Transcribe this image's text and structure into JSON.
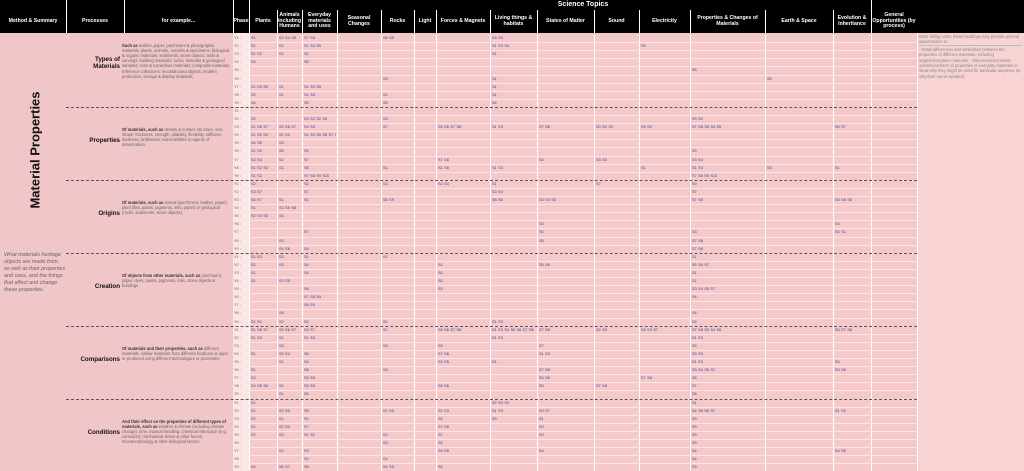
{
  "header": {
    "science_topics": "Science Topics",
    "columns": [
      "Method & Summary",
      "Processes",
      "for example...",
      "Phase",
      "Plants",
      "Animals including Humans",
      "Everyday materials and uses",
      "Seasonal Changes",
      "Rocks",
      "Light",
      "Forces & Magnets",
      "Living things & habitats",
      "States of Matter",
      "Sound",
      "Electricity",
      "Properties & Changes of Materials",
      "Earth & Space",
      "Evolution & Inheritance",
      "General Opportunities (by process)"
    ]
  },
  "method": {
    "title": "Material Properties",
    "summary": "What materials heritage objects are made from, as well as their properties and uses, and the things that affect and change these properties."
  },
  "phases": [
    "Y1 :",
    "Y2 :",
    "Y3 :",
    "Y4 :",
    "Y5 :",
    "Y6 :",
    "Y7 :",
    "Y8 :",
    "Y9 :"
  ],
  "processes": [
    {
      "name": "Types of Materials",
      "example_lead": "Such as",
      "example": "textiles, paper, parchment & photographic materials; plants, animals, remains & specimens; biological & organic materials; sediments, stone objects; tools & carvings; building materials; rocks, minerals & geological samples; tools & hazardous materials; composite materials; reference collections; reconstructed objects; modern production, storage & display materials."
    },
    {
      "name": "Properties",
      "example_lead": "Of materials, such as",
      "example": "density & surface structure, size, shape, thickness, strength, pliability, flexibility, stiffness, hardness, brittleness; vulnerabilities to agents of deterioration."
    },
    {
      "name": "Origins",
      "example_lead": "Of materials, such as",
      "example": "animal (parchment, leather, paper), plant (flax, paints, pigments, inks, paper) or geological (rocks, sediments, stone objects)."
    },
    {
      "name": "Creation",
      "example_lead": "Of objects from other materials, such as",
      "example": "parchment, paper, dyes, paints, pigments, inks, stone objects & buildings."
    },
    {
      "name": "Comparisons",
      "example_lead": "Of materials and their properties, such as",
      "example": "different materials, similar materials from different locations or ages, or produced using different technologies or processes."
    },
    {
      "name": "Conditions",
      "example_lead": "And their effect on the properties of different types of materials, such as",
      "example": "weather & climate (including climate change); time; manual handling; chemical interaction (e.g. corrosion); mechanical stress & other forces; micromorphology & other biological factors."
    }
  ],
  "opportunities": [
    "Work falling under these headings may provide general opportunities to:",
    "- Detail differences and similarities between the properties of different materials, including organic/inorganic materials. - Discuss/demonstrate usefulness/harm of properties of everyday materials to show why they might be used for particular purposes (or why their use is avoided)."
  ],
  "codes": {
    "r00": {
      "c0": [
        "S1"
      ],
      "c1": [
        "S3",
        "S4",
        "S5"
      ],
      "c2": [
        "S7",
        "S8"
      ],
      "c4": [
        "S8",
        "S9"
      ],
      "c7": [
        "S3",
        "S5"
      ]
    },
    "r01": {
      "c0": [
        "S1"
      ],
      "c1": [
        "S1"
      ],
      "c2": [
        "S1",
        "S4",
        "S5"
      ],
      "c7": [
        "S1",
        "S3",
        "S4"
      ],
      "c10": [
        "S9"
      ]
    },
    "r02": {
      "c0": [
        "S1",
        "S2"
      ],
      "c1": [
        "S1"
      ],
      "c2": [
        "S1"
      ],
      "c7": [
        "S1"
      ]
    },
    "r03": {
      "c0": [
        "S4"
      ],
      "c2": [
        "S5"
      ]
    },
    "r04": {
      "c11": [
        "S5"
      ]
    },
    "r05": {
      "c4": [
        "S9"
      ],
      "c7": [
        "S1"
      ],
      "c12": [
        "S5"
      ]
    },
    "r06": {
      "c0": [
        "S1",
        "S3",
        "S5"
      ],
      "c1": [
        "S1"
      ],
      "c2": [
        "S1",
        "S3",
        "S5"
      ],
      "c7": [
        "S1"
      ]
    },
    "r07": {
      "c0": [
        "S2"
      ],
      "c1": [
        "S1"
      ],
      "c2": [
        "S1",
        "S8"
      ],
      "c4": [
        "S2"
      ],
      "c7": [
        "S1"
      ]
    },
    "r08": {
      "c0": [
        "S4"
      ],
      "c2": [
        "S5"
      ],
      "c4": [
        "S5"
      ],
      "c7": [
        "S4"
      ]
    },
    "r10": {
      "c0": [
        "S2"
      ],
      "c2": [
        "S3",
        "S2",
        "S2",
        "S3"
      ],
      "c4": [
        "S3"
      ],
      "c11": [
        "S9",
        "S2"
      ]
    },
    "r11": {
      "c0": [
        "S1",
        "S6",
        "S7"
      ],
      "c1": [
        "S3",
        "S6",
        "S7"
      ],
      "c2": [
        "S4",
        "S5"
      ],
      "c4": [
        "S7"
      ],
      "c6": [
        "S5",
        "S6",
        "S7",
        "S8"
      ],
      "c7": [
        "S1",
        "S3"
      ],
      "c8": [
        "S7",
        "S8"
      ],
      "c9": [
        "S0",
        "S2",
        "S3"
      ],
      "c10": [
        "S9",
        "S3"
      ],
      "c11": [
        "S7",
        "S8",
        "S3",
        "S4",
        "S5"
      ],
      "c13": [
        "S6",
        "S7"
      ]
    },
    "r12": {
      "c0": [
        "S1",
        "S2",
        "S4"
      ],
      "c1": [
        "S1",
        "S3"
      ],
      "c2": [
        "S1",
        "S3",
        "S5",
        "S6",
        "S7",
        "S8",
        "S9"
      ]
    },
    "r13": {
      "c0": [
        "S4",
        "S5"
      ],
      "c1": [
        "S3"
      ]
    },
    "r14": {
      "c0": [
        "S1",
        "S2"
      ],
      "c1": [
        "S5"
      ],
      "c2": [
        "S1"
      ],
      "c11": [
        "S3"
      ]
    },
    "r15": {
      "c0": [
        "S2",
        "S4"
      ],
      "c1": [
        "S2"
      ],
      "c2": [
        "S7"
      ],
      "c6": [
        "S7",
        "S8"
      ],
      "c8": [
        "S4"
      ],
      "c9": [
        "S3",
        "S5"
      ],
      "c11": [
        "S3",
        "S4"
      ]
    },
    "r16": {
      "c0": [
        "S1",
        "S2",
        "S3"
      ],
      "c1": [
        "S1"
      ],
      "c2": [
        "S8"
      ],
      "c4": [
        "S1"
      ],
      "c6": [
        "S1",
        "S8"
      ],
      "c7": [
        "S1",
        "S3"
      ],
      "c10": [
        "S1"
      ],
      "c11": [
        "S1",
        "S4"
      ],
      "c12": [
        "S5"
      ],
      "c13": [
        "S1"
      ]
    },
    "r17": {
      "c0": [
        "S1",
        "S2"
      ],
      "c2": [
        "S7",
        "S8",
        "S9",
        "S10"
      ],
      "c11": [
        "S7",
        "S8",
        "S9",
        "S10"
      ]
    },
    "r18": {
      "c0": [
        "S2"
      ],
      "c2": [
        "S2"
      ],
      "c4": [
        "S2"
      ],
      "c6": [
        "S2",
        "S4"
      ],
      "c7": [
        "S1"
      ],
      "c9": [
        "S7"
      ],
      "c11": [
        "S9"
      ]
    },
    "r19": {
      "c0": [
        "S3",
        "S7"
      ],
      "c2": [
        "S7"
      ],
      "c7": [
        "S3",
        "S4"
      ],
      "c11": [
        "S7"
      ]
    },
    "r20": {
      "c0": [
        "S6",
        "S7"
      ],
      "c1": [
        "S1"
      ],
      "c2": [
        "S4"
      ],
      "c4": [
        "S8",
        "S9"
      ],
      "c7": [
        "S8",
        "S6"
      ],
      "c8": [
        "S3",
        "S4",
        "S5"
      ],
      "c11": [
        "S7",
        "S8"
      ],
      "c13": [
        "S5",
        "S6",
        "S8"
      ]
    },
    "r21": {
      "c0": [
        "S1"
      ],
      "c1": [
        "S3",
        "S5",
        "S8"
      ]
    },
    "r22": {
      "c0": [
        "S2",
        "S4",
        "S5"
      ],
      "c1": [
        "S4"
      ]
    },
    "r23": {
      "c8": [
        "S3"
      ],
      "c13": [
        "S4"
      ]
    },
    "r24": {
      "c2": [
        "S7"
      ],
      "c8": [
        "S6"
      ],
      "c11": [
        "S3"
      ],
      "c13": [
        "S3",
        "S1"
      ]
    },
    "r25": {
      "c1": [
        "S3"
      ],
      "c8": [
        "S5"
      ],
      "c11": [
        "S7",
        "S8"
      ]
    },
    "r26": {
      "c1": [
        "S4",
        "S6"
      ],
      "c2": [
        "S4"
      ],
      "c11": [
        "S7",
        "S8"
      ]
    },
    "r27": {
      "c0": [
        "S1",
        "S3"
      ],
      "c1": [
        "S3"
      ],
      "c2": [
        "S1"
      ],
      "c4": [
        "S1"
      ],
      "c11": [
        "S1"
      ]
    },
    "r28": {
      "c0": [
        "S2"
      ],
      "c1": [
        "S3"
      ],
      "c2": [
        "S4"
      ],
      "c6": [
        "S1"
      ],
      "c8": [
        "S5",
        "S6"
      ],
      "c11": [
        "S5",
        "S6",
        "S7"
      ]
    },
    "r29": {
      "c0": [
        "S1"
      ],
      "c2": [
        "S4"
      ],
      "c6": [
        "S2"
      ],
      "c11": [
        "S1"
      ]
    },
    "r30": {
      "c0": [
        "S1"
      ],
      "c1": [
        "S3",
        "S5"
      ],
      "c6": [
        "S2"
      ],
      "c11": [
        "S1"
      ]
    },
    "r31": {
      "c2": [
        "S8"
      ],
      "c6": [
        "S3"
      ],
      "c11": [
        "S3",
        "S4",
        "S5",
        "S7"
      ]
    },
    "r32": {
      "c2": [
        "S7",
        "S8",
        "S9"
      ],
      "c11": [
        "S4"
      ]
    },
    "r33": {
      "c2": [
        "S8",
        "S9"
      ]
    },
    "r34": {
      "c1": [
        "S4"
      ],
      "c11": [
        "S4"
      ]
    },
    "r35": {
      "c0": [
        "S1",
        "S2"
      ],
      "c1": [
        "S2"
      ],
      "c2": [
        "S2"
      ],
      "c4": [
        "S2"
      ],
      "c7": [
        "S1",
        "S3"
      ],
      "c11": [
        "S2"
      ]
    },
    "r36": {
      "c0": [
        "S1",
        "S6",
        "S7"
      ],
      "c1": [
        "S3",
        "S6",
        "S7"
      ],
      "c2": [
        "S4",
        "S7"
      ],
      "c4": [
        "S7"
      ],
      "c6": [
        "S5",
        "S6",
        "S7",
        "S8"
      ],
      "c7": [
        "S1",
        "S3",
        "S4",
        "S5",
        "S6",
        "S7",
        "S8"
      ],
      "c8": [
        "S7",
        "S8"
      ],
      "c9": [
        "S2",
        "S3"
      ],
      "c10": [
        "S9",
        "S3",
        "S7"
      ],
      "c11": [
        "S7",
        "S8",
        "S3",
        "S4",
        "S5"
      ],
      "c13": [
        "S6",
        "S7",
        "S8"
      ]
    },
    "r37": {
      "c0": [
        "S1",
        "S3"
      ],
      "c1": [
        "S1"
      ],
      "c2": [
        "S1",
        "S3"
      ],
      "c7": [
        "S1",
        "S3"
      ],
      "c11": [
        "S1",
        "S3"
      ]
    },
    "r38": {
      "c1": [
        "S3"
      ],
      "c4": [
        "S9"
      ],
      "c6": [
        "S9"
      ],
      "c8": [
        "S7"
      ],
      "c11": [
        "S9"
      ]
    },
    "r39": {
      "c0": [
        "S1"
      ],
      "c1": [
        "S3",
        "S4"
      ],
      "c2": [
        "S5"
      ],
      "c6": [
        "S7",
        "S8"
      ],
      "c8": [
        "S1",
        "S3"
      ],
      "c11": [
        "S3",
        "S5"
      ]
    },
    "r40": {
      "c1": [
        "S1"
      ],
      "c2": [
        "S4"
      ],
      "c6": [
        "S3",
        "S5"
      ],
      "c7": [
        "S1"
      ],
      "c11": [
        "S1",
        "S3"
      ],
      "c13": [
        "S4"
      ]
    },
    "r41": {
      "c0": [
        "S1"
      ],
      "c2": [
        "S8"
      ],
      "c4": [
        "S9"
      ],
      "c8": [
        "S7",
        "S8"
      ],
      "c11": [
        "S3",
        "S4",
        "S5",
        "S7"
      ],
      "c13": [
        "S3",
        "S5"
      ]
    },
    "r42": {
      "c0": [
        "S2"
      ],
      "c2": [
        "S5",
        "S8"
      ],
      "c8": [
        "S4",
        "S5"
      ],
      "c10": [
        "S7",
        "S8"
      ],
      "c11": [
        "S8"
      ]
    },
    "r43": {
      "c0": [
        "S4",
        "S5",
        "S6"
      ],
      "c1": [
        "S4"
      ],
      "c2": [
        "S5",
        "S8"
      ],
      "c6": [
        "S5",
        "S6"
      ],
      "c8": [
        "S5"
      ],
      "c9": [
        "S7",
        "S8"
      ],
      "c11": [
        "S7"
      ]
    },
    "r44": {
      "c1": [
        "S1"
      ],
      "c2": [
        "S6"
      ],
      "c11": [
        "S6"
      ]
    },
    "r45": {
      "c0": [
        "S1"
      ],
      "c7": [
        "S2",
        "S3",
        "S4"
      ],
      "c11": [
        "S1"
      ]
    },
    "r46": {
      "c0": [
        "S1"
      ],
      "c1": [
        "S3",
        "S5"
      ],
      "c2": [
        "S5"
      ],
      "c4": [
        "S1",
        "S5"
      ],
      "c6": [
        "S2",
        "S3"
      ],
      "c7": [
        "S1",
        "S3"
      ],
      "c8": [
        "S3",
        "S7"
      ],
      "c11": [
        "S4",
        "S5",
        "S6",
        "S7"
      ],
      "c13": [
        "S1",
        "S2"
      ]
    },
    "r47": {
      "c0": [
        "S2"
      ],
      "c1": [
        "S1"
      ],
      "c2": [
        "S1"
      ],
      "c6": [
        "S3"
      ],
      "c7": [
        "S3"
      ],
      "c8": [
        "S1"
      ],
      "c11": [
        "S3"
      ]
    },
    "r48": {
      "c0": [
        "S1"
      ],
      "c1": [
        "S2",
        "S3"
      ],
      "c2": [
        "S7"
      ],
      "c6": [
        "S7",
        "S8"
      ],
      "c8": [
        "S3"
      ],
      "c11": [
        "S5"
      ]
    },
    "r49": {
      "c0": [
        "S2"
      ],
      "c1": [
        "S3"
      ],
      "c2": [
        "S1",
        "S2"
      ],
      "c4": [
        "S2"
      ],
      "c6": [
        "S7"
      ],
      "c8": [
        "S3"
      ],
      "c11": [
        "S3"
      ]
    },
    "r50": {
      "c4": [
        "S3"
      ],
      "c6": [
        "S3"
      ],
      "c11": [
        "S3"
      ]
    },
    "r51": {
      "c1": [
        "S2"
      ],
      "c2": [
        "S3"
      ],
      "c6": [
        "S4",
        "S5"
      ],
      "c8": [
        "S4"
      ],
      "c11": [
        "S4"
      ],
      "c13": [
        "S4",
        "S5"
      ]
    },
    "r52": {
      "c2": [
        "S2"
      ],
      "c4": [
        "S4"
      ],
      "c11": [
        "S4"
      ]
    },
    "r53": {
      "c0": [
        "S4"
      ],
      "c1": [
        "S6",
        "S7"
      ],
      "c2": [
        "S5"
      ],
      "c4": [
        "S4",
        "S5"
      ],
      "c6": [
        "S3"
      ],
      "c11": [
        "S3"
      ]
    }
  }
}
